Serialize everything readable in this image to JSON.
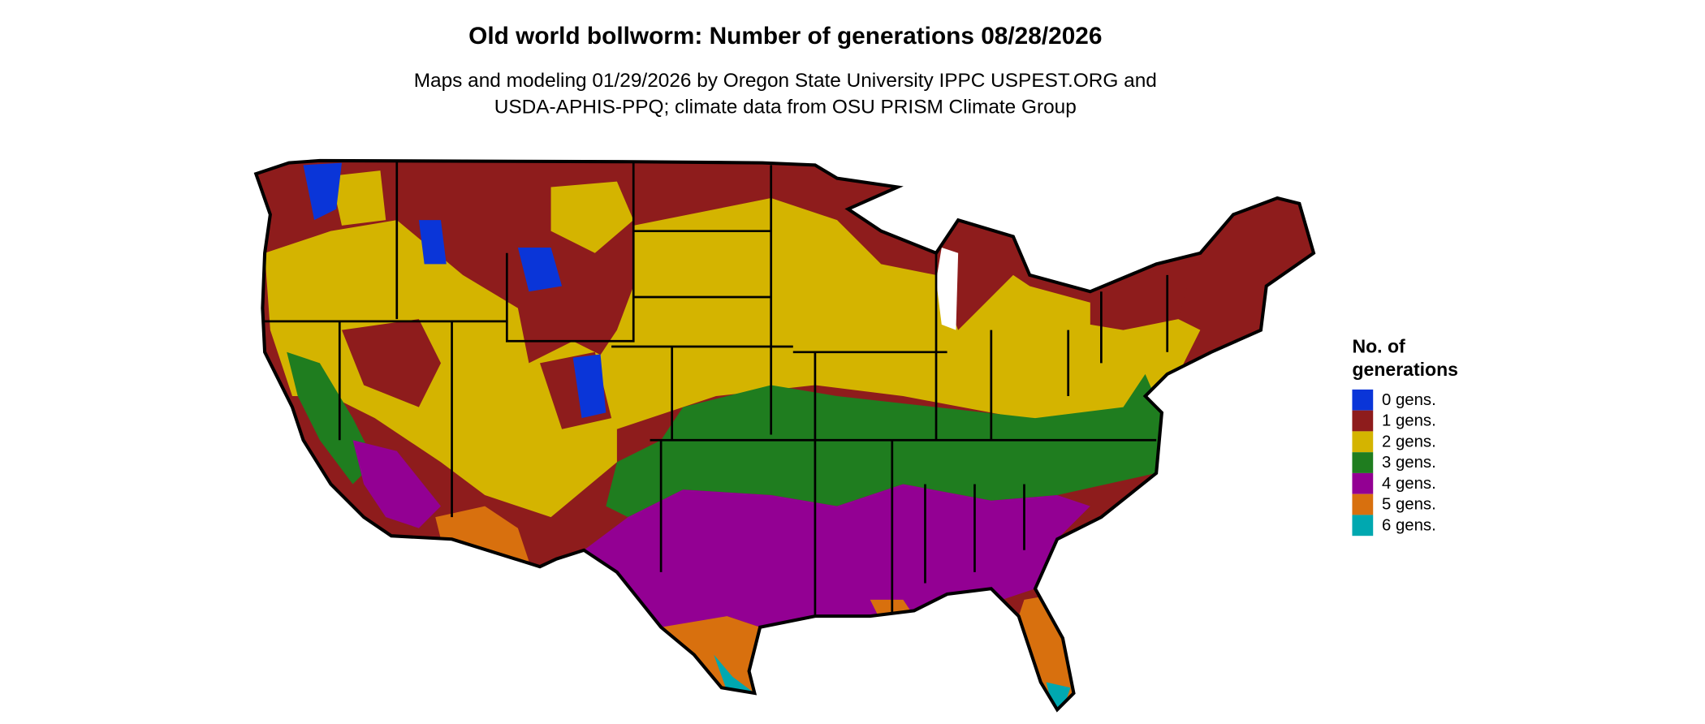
{
  "title": "Old world bollworm: Number of generations 08/28/2026",
  "subtitle_lines": [
    "Maps and modeling 01/29/2026 by Oregon State University IPPC USPEST.ORG and",
    "USDA-APHIS-PPQ; climate data from OSU PRISM Climate Group"
  ],
  "legend": {
    "title_lines": [
      "No. of",
      "generations"
    ],
    "items": [
      {
        "label": "0 gens.",
        "color": "#0a35d8"
      },
      {
        "label": "1 gens.",
        "color": "#8e1c1c"
      },
      {
        "label": "2 gens.",
        "color": "#d4b400"
      },
      {
        "label": "3 gens.",
        "color": "#1f7d1f"
      },
      {
        "label": "4 gens.",
        "color": "#930093"
      },
      {
        "label": "5 gens.",
        "color": "#d8700e"
      },
      {
        "label": "6 gens.",
        "color": "#00a8b0"
      }
    ]
  }
}
